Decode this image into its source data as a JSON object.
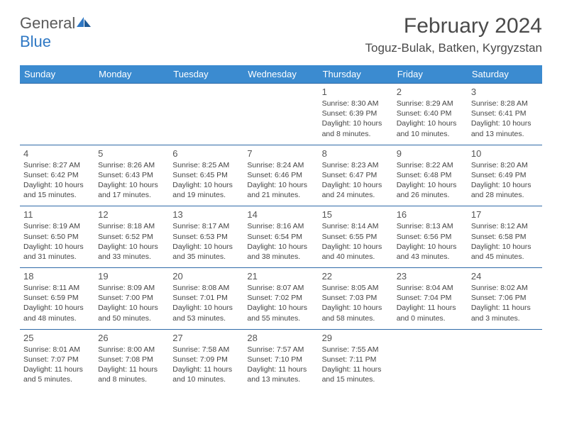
{
  "brand": {
    "name_part1": "General",
    "name_part2": "Blue"
  },
  "title": "February 2024",
  "location": "Toguz-Bulak, Batken, Kyrgyzstan",
  "colors": {
    "header_bg": "#3b8bd0",
    "header_text": "#ffffff",
    "row_border": "#2f6aa8",
    "text": "#444444",
    "title_text": "#4a4a4a",
    "brand_gray": "#5a5a5a",
    "brand_blue": "#2f78c4",
    "background": "#ffffff"
  },
  "typography": {
    "month_title_fontsize": 30,
    "location_fontsize": 17,
    "dayheader_fontsize": 13,
    "daynum_fontsize": 13,
    "detail_fontsize": 10.5
  },
  "day_names": [
    "Sunday",
    "Monday",
    "Tuesday",
    "Wednesday",
    "Thursday",
    "Friday",
    "Saturday"
  ],
  "weeks": [
    [
      null,
      null,
      null,
      null,
      {
        "n": "1",
        "sr": "Sunrise: 8:30 AM",
        "ss": "Sunset: 6:39 PM",
        "dl": "Daylight: 10 hours and 8 minutes."
      },
      {
        "n": "2",
        "sr": "Sunrise: 8:29 AM",
        "ss": "Sunset: 6:40 PM",
        "dl": "Daylight: 10 hours and 10 minutes."
      },
      {
        "n": "3",
        "sr": "Sunrise: 8:28 AM",
        "ss": "Sunset: 6:41 PM",
        "dl": "Daylight: 10 hours and 13 minutes."
      }
    ],
    [
      {
        "n": "4",
        "sr": "Sunrise: 8:27 AM",
        "ss": "Sunset: 6:42 PM",
        "dl": "Daylight: 10 hours and 15 minutes."
      },
      {
        "n": "5",
        "sr": "Sunrise: 8:26 AM",
        "ss": "Sunset: 6:43 PM",
        "dl": "Daylight: 10 hours and 17 minutes."
      },
      {
        "n": "6",
        "sr": "Sunrise: 8:25 AM",
        "ss": "Sunset: 6:45 PM",
        "dl": "Daylight: 10 hours and 19 minutes."
      },
      {
        "n": "7",
        "sr": "Sunrise: 8:24 AM",
        "ss": "Sunset: 6:46 PM",
        "dl": "Daylight: 10 hours and 21 minutes."
      },
      {
        "n": "8",
        "sr": "Sunrise: 8:23 AM",
        "ss": "Sunset: 6:47 PM",
        "dl": "Daylight: 10 hours and 24 minutes."
      },
      {
        "n": "9",
        "sr": "Sunrise: 8:22 AM",
        "ss": "Sunset: 6:48 PM",
        "dl": "Daylight: 10 hours and 26 minutes."
      },
      {
        "n": "10",
        "sr": "Sunrise: 8:20 AM",
        "ss": "Sunset: 6:49 PM",
        "dl": "Daylight: 10 hours and 28 minutes."
      }
    ],
    [
      {
        "n": "11",
        "sr": "Sunrise: 8:19 AM",
        "ss": "Sunset: 6:50 PM",
        "dl": "Daylight: 10 hours and 31 minutes."
      },
      {
        "n": "12",
        "sr": "Sunrise: 8:18 AM",
        "ss": "Sunset: 6:52 PM",
        "dl": "Daylight: 10 hours and 33 minutes."
      },
      {
        "n": "13",
        "sr": "Sunrise: 8:17 AM",
        "ss": "Sunset: 6:53 PM",
        "dl": "Daylight: 10 hours and 35 minutes."
      },
      {
        "n": "14",
        "sr": "Sunrise: 8:16 AM",
        "ss": "Sunset: 6:54 PM",
        "dl": "Daylight: 10 hours and 38 minutes."
      },
      {
        "n": "15",
        "sr": "Sunrise: 8:14 AM",
        "ss": "Sunset: 6:55 PM",
        "dl": "Daylight: 10 hours and 40 minutes."
      },
      {
        "n": "16",
        "sr": "Sunrise: 8:13 AM",
        "ss": "Sunset: 6:56 PM",
        "dl": "Daylight: 10 hours and 43 minutes."
      },
      {
        "n": "17",
        "sr": "Sunrise: 8:12 AM",
        "ss": "Sunset: 6:58 PM",
        "dl": "Daylight: 10 hours and 45 minutes."
      }
    ],
    [
      {
        "n": "18",
        "sr": "Sunrise: 8:11 AM",
        "ss": "Sunset: 6:59 PM",
        "dl": "Daylight: 10 hours and 48 minutes."
      },
      {
        "n": "19",
        "sr": "Sunrise: 8:09 AM",
        "ss": "Sunset: 7:00 PM",
        "dl": "Daylight: 10 hours and 50 minutes."
      },
      {
        "n": "20",
        "sr": "Sunrise: 8:08 AM",
        "ss": "Sunset: 7:01 PM",
        "dl": "Daylight: 10 hours and 53 minutes."
      },
      {
        "n": "21",
        "sr": "Sunrise: 8:07 AM",
        "ss": "Sunset: 7:02 PM",
        "dl": "Daylight: 10 hours and 55 minutes."
      },
      {
        "n": "22",
        "sr": "Sunrise: 8:05 AM",
        "ss": "Sunset: 7:03 PM",
        "dl": "Daylight: 10 hours and 58 minutes."
      },
      {
        "n": "23",
        "sr": "Sunrise: 8:04 AM",
        "ss": "Sunset: 7:04 PM",
        "dl": "Daylight: 11 hours and 0 minutes."
      },
      {
        "n": "24",
        "sr": "Sunrise: 8:02 AM",
        "ss": "Sunset: 7:06 PM",
        "dl": "Daylight: 11 hours and 3 minutes."
      }
    ],
    [
      {
        "n": "25",
        "sr": "Sunrise: 8:01 AM",
        "ss": "Sunset: 7:07 PM",
        "dl": "Daylight: 11 hours and 5 minutes."
      },
      {
        "n": "26",
        "sr": "Sunrise: 8:00 AM",
        "ss": "Sunset: 7:08 PM",
        "dl": "Daylight: 11 hours and 8 minutes."
      },
      {
        "n": "27",
        "sr": "Sunrise: 7:58 AM",
        "ss": "Sunset: 7:09 PM",
        "dl": "Daylight: 11 hours and 10 minutes."
      },
      {
        "n": "28",
        "sr": "Sunrise: 7:57 AM",
        "ss": "Sunset: 7:10 PM",
        "dl": "Daylight: 11 hours and 13 minutes."
      },
      {
        "n": "29",
        "sr": "Sunrise: 7:55 AM",
        "ss": "Sunset: 7:11 PM",
        "dl": "Daylight: 11 hours and 15 minutes."
      },
      null,
      null
    ]
  ]
}
